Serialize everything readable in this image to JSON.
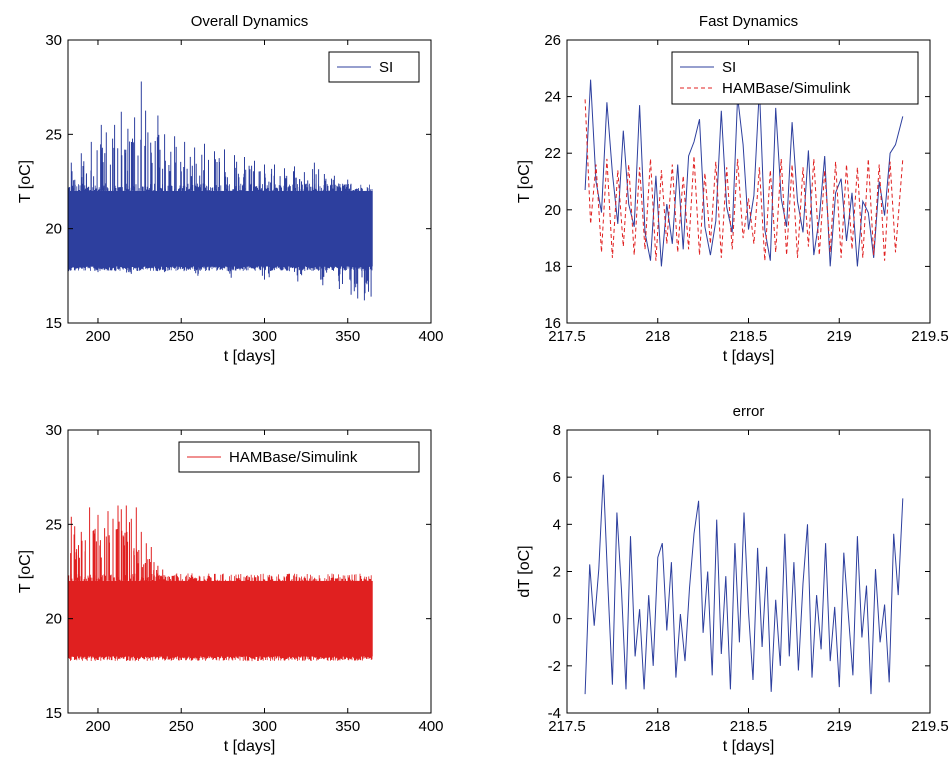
{
  "chart_data": [
    {
      "type": "line",
      "title": "Overall Dynamics",
      "xlabel": "t [days]",
      "ylabel": "T [oC]",
      "xlim": [
        182,
        400
      ],
      "ylim": [
        15,
        30
      ],
      "xticks": [
        200,
        250,
        300,
        350,
        400
      ],
      "yticks": [
        15,
        20,
        25,
        30
      ],
      "xtick_labels": [
        "200",
        "250",
        "300",
        "350",
        "400"
      ],
      "ytick_labels": [
        "15",
        "20",
        "25",
        "30"
      ],
      "grid": false,
      "legend_position": "top-right",
      "series": [
        {
          "name": "SI",
          "color": "#2d3f9e",
          "style": "solid",
          "x_range": [
            182,
            365
          ],
          "band_low": 18,
          "band_high": 22,
          "spikes_up": [
            [
              184,
              23.5
            ],
            [
              190,
              24.0
            ],
            [
              196,
              24.6
            ],
            [
              202,
              25.5
            ],
            [
              205,
              25.1
            ],
            [
              210,
              25.5
            ],
            [
              214,
              26.2
            ],
            [
              218,
              25.3
            ],
            [
              222,
              25.9
            ],
            [
              226,
              27.8
            ],
            [
              230,
              25.1
            ],
            [
              236,
              26.0
            ],
            [
              240,
              25.0
            ],
            [
              246,
              24.9
            ],
            [
              252,
              24.6
            ],
            [
              258,
              24.3
            ],
            [
              264,
              24.5
            ],
            [
              270,
              24.1
            ],
            [
              276,
              24.2
            ],
            [
              282,
              23.9
            ],
            [
              288,
              23.8
            ],
            [
              294,
              23.6
            ],
            [
              300,
              23.4
            ],
            [
              306,
              23.4
            ],
            [
              312,
              23.2
            ],
            [
              318,
              23.3
            ],
            [
              324,
              23.0
            ],
            [
              330,
              23.5
            ],
            [
              336,
              22.9
            ],
            [
              342,
              22.8
            ],
            [
              350,
              22.6
            ],
            [
              356,
              22.1
            ],
            [
              362,
              22.0
            ]
          ],
          "spikes_down": [
            [
              186,
              17.8
            ],
            [
              200,
              17.7
            ],
            [
              220,
              17.6
            ],
            [
              240,
              17.7
            ],
            [
              260,
              17.5
            ],
            [
              280,
              17.4
            ],
            [
              300,
              17.3
            ],
            [
              320,
              17.2
            ],
            [
              335,
              17.0
            ],
            [
              345,
              16.8
            ],
            [
              352,
              16.5
            ],
            [
              356,
              16.3
            ],
            [
              360,
              16.2
            ],
            [
              364,
              16.4
            ]
          ]
        }
      ]
    },
    {
      "type": "line",
      "title": "Fast Dynamics",
      "xlabel": "t [days]",
      "ylabel": "T [oC]",
      "xlim": [
        217.5,
        219.5
      ],
      "ylim": [
        16,
        26
      ],
      "xticks": [
        217.5,
        218,
        218.5,
        219,
        219.5
      ],
      "yticks": [
        16,
        18,
        20,
        22,
        24,
        26
      ],
      "xtick_labels": [
        "217.5",
        "218",
        "218.5",
        "219",
        "219.5"
      ],
      "ytick_labels": [
        "16",
        "18",
        "20",
        "22",
        "24",
        "26"
      ],
      "grid": false,
      "legend_position": "top-right",
      "series": [
        {
          "name": "SI",
          "color": "#2d3f9e",
          "style": "solid",
          "x": [
            217.6,
            217.63,
            217.66,
            217.69,
            217.72,
            217.75,
            217.78,
            217.81,
            217.84,
            217.87,
            217.9,
            217.93,
            217.96,
            217.99,
            218.02,
            218.05,
            218.08,
            218.11,
            218.14,
            218.17,
            218.2,
            218.23,
            218.26,
            218.29,
            218.32,
            218.35,
            218.38,
            218.41,
            218.44,
            218.47,
            218.5,
            218.53,
            218.56,
            218.59,
            218.62,
            218.65,
            218.68,
            218.71,
            218.74,
            218.77,
            218.8,
            218.83,
            218.86,
            218.89,
            218.92,
            218.95,
            218.98,
            219.01,
            219.04,
            219.07,
            219.1,
            219.13,
            219.16,
            219.19,
            219.22,
            219.25,
            219.28,
            219.31,
            219.35
          ],
          "y": [
            20.7,
            24.6,
            21.0,
            19.9,
            23.8,
            21.3,
            19.5,
            22.8,
            20.2,
            19.4,
            23.7,
            19.2,
            18.2,
            21.2,
            18.0,
            20.2,
            18.8,
            21.6,
            18.6,
            21.9,
            22.4,
            23.2,
            19.4,
            18.4,
            19.6,
            23.5,
            20.1,
            19.2,
            24.0,
            22.3,
            19.3,
            20.5,
            24.3,
            19.3,
            18.2,
            23.6,
            20.4,
            19.4,
            23.1,
            20.3,
            19.2,
            22.1,
            18.4,
            19.7,
            21.9,
            18.0,
            20.6,
            21.1,
            18.9,
            20.6,
            18.0,
            20.3,
            19.9,
            18.3,
            21.0,
            19.8,
            22.0,
            22.3,
            23.3
          ]
        },
        {
          "name": "HAMBase/Simulink",
          "color": "#e02020",
          "style": "dashed",
          "x": [
            217.6,
            217.63,
            217.66,
            217.69,
            217.72,
            217.75,
            217.78,
            217.81,
            217.84,
            217.87,
            217.9,
            217.93,
            217.96,
            217.99,
            218.02,
            218.05,
            218.08,
            218.11,
            218.14,
            218.17,
            218.2,
            218.23,
            218.26,
            218.29,
            218.32,
            218.35,
            218.38,
            218.41,
            218.44,
            218.47,
            218.5,
            218.53,
            218.56,
            218.59,
            218.62,
            218.65,
            218.68,
            218.71,
            218.74,
            218.77,
            218.8,
            218.83,
            218.86,
            218.89,
            218.92,
            218.95,
            218.98,
            219.01,
            219.04,
            219.07,
            219.1,
            219.13,
            219.16,
            219.19,
            219.22,
            219.25,
            219.28,
            219.31,
            219.35
          ],
          "y": [
            23.9,
            19.5,
            21.6,
            18.5,
            21.8,
            18.3,
            21.4,
            18.7,
            21.6,
            18.4,
            21.5,
            18.6,
            21.8,
            18.2,
            21.4,
            18.8,
            21.6,
            18.5,
            21.2,
            18.6,
            21.9,
            18.4,
            21.3,
            18.8,
            21.7,
            18.3,
            21.5,
            18.6,
            21.8,
            19.0,
            20.4,
            18.8,
            21.5,
            18.2,
            21.4,
            18.5,
            21.8,
            18.4,
            21.6,
            18.3,
            21.5,
            18.7,
            21.8,
            18.4,
            21.4,
            18.5,
            21.7,
            18.3,
            21.6,
            18.6,
            21.5,
            18.3,
            21.8,
            18.4,
            21.6,
            18.2,
            21.7,
            18.5,
            21.8
          ]
        }
      ]
    },
    {
      "type": "line",
      "title": "",
      "xlabel": "t [days]",
      "ylabel": "T [oC]",
      "xlim": [
        182,
        400
      ],
      "ylim": [
        15,
        30
      ],
      "xticks": [
        200,
        250,
        300,
        350,
        400
      ],
      "yticks": [
        15,
        20,
        25,
        30
      ],
      "xtick_labels": [
        "200",
        "250",
        "300",
        "350",
        "400"
      ],
      "ytick_labels": [
        "15",
        "20",
        "25",
        "30"
      ],
      "grid": false,
      "legend_position": "top-right",
      "series": [
        {
          "name": "HAMBase/Simulink",
          "color": "#e02020",
          "style": "solid",
          "x_range": [
            182,
            365
          ],
          "band_low": 18,
          "band_high": 22,
          "spikes_up": [
            [
              184,
              25.4
            ],
            [
              186,
              24.9
            ],
            [
              190,
              24.6
            ],
            [
              195,
              25.9
            ],
            [
              200,
              25.5
            ],
            [
              204,
              24.8
            ],
            [
              206,
              25.7
            ],
            [
              209,
              25.3
            ],
            [
              212,
              26.0
            ],
            [
              214,
              25.8
            ],
            [
              217,
              26.0
            ],
            [
              220,
              25.3
            ],
            [
              223,
              25.9
            ],
            [
              226,
              24.6
            ],
            [
              229,
              24.0
            ],
            [
              232,
              23.8
            ],
            [
              236,
              22.8
            ]
          ],
          "spikes_down": []
        }
      ]
    },
    {
      "type": "line",
      "title": "error",
      "xlabel": "t [days]",
      "ylabel": "dT [oC]",
      "xlim": [
        217.5,
        219.5
      ],
      "ylim": [
        -4,
        8
      ],
      "xticks": [
        217.5,
        218,
        218.5,
        219,
        219.5
      ],
      "yticks": [
        -4,
        -2,
        0,
        2,
        4,
        6,
        8
      ],
      "xtick_labels": [
        "217.5",
        "218",
        "218.5",
        "219",
        "219.5"
      ],
      "ytick_labels": [
        "-4",
        "-2",
        "0",
        "2",
        "4",
        "6",
        "8"
      ],
      "grid": false,
      "series": [
        {
          "color": "#2d3f9e",
          "style": "solid",
          "x": [
            217.6,
            217.625,
            217.65,
            217.675,
            217.7,
            217.725,
            217.75,
            217.775,
            217.8,
            217.825,
            217.85,
            217.875,
            217.9,
            217.925,
            217.95,
            217.975,
            218.0,
            218.025,
            218.05,
            218.075,
            218.1,
            218.125,
            218.15,
            218.175,
            218.2,
            218.225,
            218.25,
            218.275,
            218.3,
            218.325,
            218.35,
            218.375,
            218.4,
            218.425,
            218.45,
            218.475,
            218.5,
            218.525,
            218.55,
            218.575,
            218.6,
            218.625,
            218.65,
            218.675,
            218.7,
            218.725,
            218.75,
            218.775,
            218.8,
            218.825,
            218.85,
            218.875,
            218.9,
            218.925,
            218.95,
            218.975,
            219.0,
            219.025,
            219.05,
            219.075,
            219.1,
            219.125,
            219.15,
            219.175,
            219.2,
            219.225,
            219.25,
            219.275,
            219.3,
            219.325,
            219.35
          ],
          "y": [
            -3.2,
            2.3,
            -0.3,
            2.1,
            6.1,
            1.5,
            -2.8,
            4.5,
            1.2,
            -3.0,
            3.5,
            -1.6,
            0.4,
            -3.0,
            1.0,
            -2.0,
            2.6,
            3.2,
            -0.5,
            2.4,
            -2.5,
            0.2,
            -1.8,
            1.3,
            3.6,
            5.0,
            -0.6,
            2.0,
            -2.4,
            4.2,
            -1.5,
            1.8,
            -3.0,
            3.2,
            -1.0,
            4.5,
            0.3,
            -2.6,
            3.0,
            -1.2,
            2.2,
            -3.1,
            0.8,
            -2.0,
            3.6,
            -1.6,
            2.4,
            -2.2,
            1.5,
            4.0,
            -2.5,
            1.0,
            -1.3,
            3.2,
            -1.8,
            0.5,
            -2.9,
            2.8,
            0.2,
            -2.4,
            3.5,
            -0.8,
            1.4,
            -3.2,
            2.1,
            -1.0,
            0.6,
            -2.7,
            3.6,
            1.0,
            5.1
          ]
        }
      ]
    }
  ]
}
